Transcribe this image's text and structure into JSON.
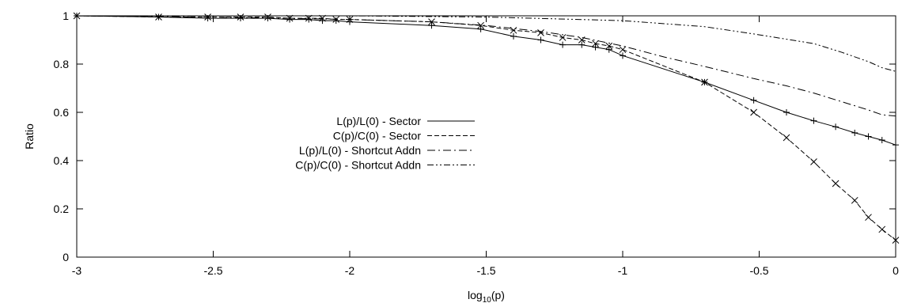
{
  "chart_data": {
    "type": "line",
    "xlabel_base": "log",
    "xlabel_sub": "10",
    "xlabel_tail": "(p)",
    "ylabel": "Ratio",
    "xlim": [
      -3,
      0
    ],
    "ylim": [
      0,
      1
    ],
    "xticks": [
      -3,
      -2.5,
      -2,
      -1.5,
      -1,
      -0.5,
      0
    ],
    "yticks": [
      0,
      0.2,
      0.4,
      0.6,
      0.8,
      1
    ],
    "xtick_labels": [
      "-3",
      "-2.5",
      "-2",
      "-1.5",
      "-1",
      "-0.5",
      "0"
    ],
    "ytick_labels": [
      "0",
      "0.2",
      "0.4",
      "0.6",
      "0.8",
      "1"
    ],
    "grid": false,
    "legend_position": "center",
    "series": [
      {
        "name": "L(p)/L(0) - Sector",
        "dash": "solid",
        "marker": "plus",
        "x": [
          -3,
          -2.7,
          -2.52,
          -2.4,
          -2.3,
          -2.22,
          -2.15,
          -2.1,
          -2.05,
          -2.0,
          -1.7,
          -1.52,
          -1.4,
          -1.3,
          -1.22,
          -1.15,
          -1.1,
          -1.05,
          -1.0,
          -0.7,
          -0.52,
          -0.4,
          -0.3,
          -0.22,
          -0.15,
          -0.1,
          -0.05,
          0
        ],
        "y": [
          1.0,
          0.995,
          0.99,
          0.99,
          0.99,
          0.985,
          0.985,
          0.98,
          0.98,
          0.975,
          0.96,
          0.945,
          0.915,
          0.9,
          0.88,
          0.88,
          0.87,
          0.86,
          0.835,
          0.725,
          0.65,
          0.6,
          0.565,
          0.54,
          0.515,
          0.5,
          0.485,
          0.465
        ]
      },
      {
        "name": "C(p)/C(0) - Sector",
        "dash": "dashed",
        "marker": "cross",
        "x": [
          -3,
          -2.7,
          -2.52,
          -2.4,
          -2.3,
          -2.22,
          -2.15,
          -2.1,
          -2.05,
          -2.0,
          -1.7,
          -1.52,
          -1.4,
          -1.3,
          -1.22,
          -1.15,
          -1.1,
          -1.05,
          -1.0,
          -0.7,
          -0.52,
          -0.4,
          -0.3,
          -0.22,
          -0.15,
          -0.1,
          -0.05,
          0
        ],
        "y": [
          1.0,
          0.995,
          0.995,
          0.995,
          0.995,
          0.99,
          0.99,
          0.99,
          0.985,
          0.985,
          0.975,
          0.96,
          0.94,
          0.93,
          0.91,
          0.9,
          0.885,
          0.875,
          0.86,
          0.725,
          0.6,
          0.495,
          0.395,
          0.305,
          0.235,
          0.165,
          0.115,
          0.07
        ]
      },
      {
        "name": "L(p)/L(0) - Shortcut Addn",
        "dash": "dashdot",
        "marker": "none",
        "x": [
          -3,
          -2.5,
          -2.0,
          -1.7,
          -1.5,
          -1.3,
          -1.15,
          -1.0,
          -0.85,
          -0.7,
          -0.52,
          -0.4,
          -0.3,
          -0.2,
          -0.1,
          -0.05,
          0
        ],
        "y": [
          1.0,
          0.995,
          0.985,
          0.975,
          0.96,
          0.935,
          0.91,
          0.875,
          0.83,
          0.79,
          0.74,
          0.71,
          0.68,
          0.645,
          0.61,
          0.59,
          0.585
        ]
      },
      {
        "name": "C(p)/C(0) - Shortcut Addn",
        "dash": "dashdotdot",
        "marker": "none",
        "x": [
          -3,
          -2.5,
          -2.0,
          -1.5,
          -1.0,
          -0.7,
          -0.52,
          -0.3,
          -0.2,
          -0.1,
          -0.05,
          0
        ],
        "y": [
          1.0,
          1.0,
          1.0,
          0.995,
          0.98,
          0.955,
          0.925,
          0.885,
          0.85,
          0.81,
          0.785,
          0.77
        ]
      }
    ]
  }
}
